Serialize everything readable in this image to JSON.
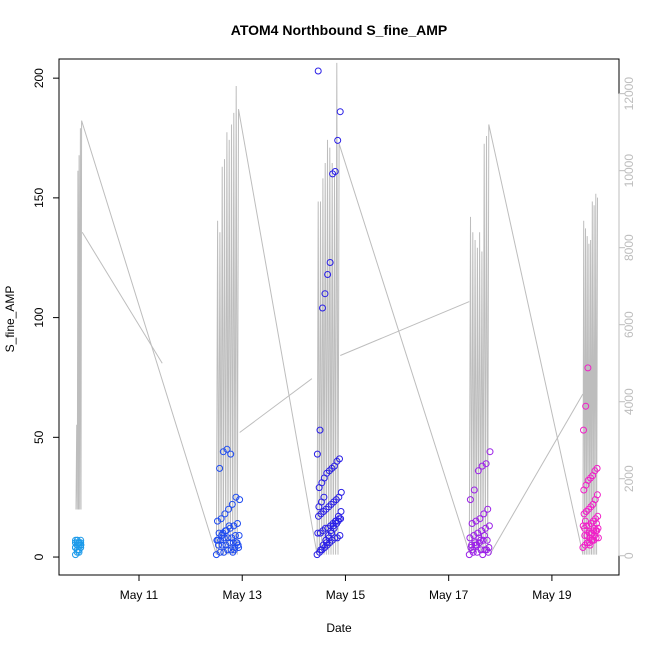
{
  "chart_data": {
    "type": "scatter",
    "title": "ATOM4 Northbound S_fine_AMP",
    "xlabel": "Date",
    "ylabel": "S_fine_AMP",
    "x_ticks": [
      "May 11",
      "May 13",
      "May 15",
      "May 17",
      "May 19"
    ],
    "x_tick_days": [
      11,
      13,
      15,
      17,
      19
    ],
    "xlim": [
      9.45,
      20.3
    ],
    "ylim": [
      -7.5,
      208
    ],
    "y_ticks": [
      0,
      50,
      100,
      150,
      200
    ],
    "y2lim": [
      -500,
      12900
    ],
    "y2_ticks": [
      0,
      2000,
      4000,
      6000,
      8000,
      10000,
      12000
    ],
    "grid": false,
    "colors": {
      "line": "#bdbdbd",
      "axis": "#000000",
      "axis2": "#bdbdbd",
      "points": [
        "#1e9bea",
        "#1f4cf0",
        "#2a1fe6",
        "#9b20e8",
        "#f020c8"
      ]
    },
    "line_series": {
      "name": "secondary axis series",
      "axis": "right",
      "bursts": [
        {
          "start": 9.78,
          "end": 9.9,
          "min": 1200,
          "peaks": [
            3400,
            10000,
            10400,
            11100,
            11300
          ]
        },
        {
          "start": 12.5,
          "end": 12.95,
          "min": 30,
          "peaks": [
            8700,
            8400,
            10100,
            10300,
            11000,
            10800,
            11200,
            11500,
            12200,
            11600
          ]
        },
        {
          "start": 14.45,
          "end": 14.9,
          "min": 30,
          "peaks": [
            9200,
            9200,
            9800,
            10200,
            10800,
            10600,
            10200,
            9900,
            12800,
            10700
          ]
        },
        {
          "start": 17.4,
          "end": 17.8,
          "min": 80,
          "peaks": [
            8800,
            8400,
            8200,
            8000,
            8400,
            7900,
            10700,
            10900,
            11200
          ]
        },
        {
          "start": 19.6,
          "end": 19.9,
          "min": 30,
          "peaks": [
            8700,
            8500,
            8300,
            8100,
            8200,
            9200,
            9100,
            9400,
            9300
          ]
        }
      ],
      "connectors": [
        [
          [
            9.9,
            8400
          ],
          [
            11.45,
            5000
          ]
        ],
        [
          [
            12.95,
            3200
          ],
          [
            14.35,
            4600
          ]
        ],
        [
          [
            14.9,
            5200
          ],
          [
            17.4,
            6600
          ]
        ],
        [
          [
            17.8,
            40
          ],
          [
            19.6,
            4200
          ]
        ]
      ]
    },
    "points": {
      "name": "S_fine_AMP",
      "axis": "left",
      "clusters": [
        {
          "day_start": 9.77,
          "day_end": 9.9,
          "color_index": 0,
          "values": [
            1,
            2,
            3,
            4,
            4,
            5,
            5,
            5,
            6,
            6,
            6,
            6,
            7,
            7,
            6,
            5,
            4,
            3,
            2,
            5,
            6,
            7,
            6,
            5,
            4,
            5,
            6,
            7
          ]
        },
        {
          "day_start": 12.5,
          "day_end": 12.95,
          "color_index": 1,
          "values": [
            1,
            2,
            2,
            3,
            3,
            4,
            4,
            5,
            5,
            5,
            6,
            6,
            6,
            7,
            7,
            8,
            8,
            8,
            9,
            9,
            10,
            10,
            11,
            12,
            13,
            14,
            15,
            16,
            18,
            20,
            22,
            25,
            24,
            37,
            44,
            45,
            43,
            3,
            5,
            7,
            9,
            11,
            13,
            2,
            6
          ]
        },
        {
          "day_start": 14.45,
          "day_end": 14.92,
          "color_index": 2,
          "values": [
            1,
            2,
            3,
            4,
            5,
            6,
            7,
            8,
            8,
            9,
            10,
            10,
            11,
            12,
            12,
            13,
            14,
            15,
            15,
            16,
            17,
            18,
            19,
            20,
            21,
            22,
            23,
            24,
            25,
            27,
            29,
            31,
            33,
            35,
            36,
            37,
            38,
            40,
            41,
            43,
            53,
            104,
            110,
            118,
            123,
            160,
            161,
            174,
            186,
            203,
            3,
            5,
            7,
            9,
            11,
            13,
            15,
            17,
            19,
            21,
            23,
            25,
            6,
            8,
            10,
            12,
            14,
            16
          ]
        },
        {
          "day_start": 17.4,
          "day_end": 17.8,
          "color_index": 3,
          "values": [
            1,
            2,
            2,
            3,
            3,
            4,
            5,
            5,
            6,
            7,
            7,
            8,
            9,
            10,
            11,
            12,
            13,
            14,
            15,
            16,
            18,
            20,
            24,
            28,
            36,
            38,
            39,
            44,
            3,
            5,
            7,
            9,
            2,
            4,
            6,
            8,
            1,
            3
          ]
        },
        {
          "day_start": 19.6,
          "day_end": 19.9,
          "color_index": 4,
          "values": [
            4,
            5,
            6,
            6,
            7,
            7,
            8,
            8,
            9,
            9,
            10,
            10,
            11,
            11,
            12,
            12,
            13,
            13,
            14,
            15,
            16,
            17,
            18,
            19,
            20,
            21,
            22,
            24,
            26,
            28,
            30,
            32,
            33,
            34,
            36,
            37,
            53,
            63,
            79,
            5,
            7,
            9,
            11,
            13,
            15,
            6,
            8,
            10,
            12,
            14
          ]
        }
      ]
    }
  }
}
